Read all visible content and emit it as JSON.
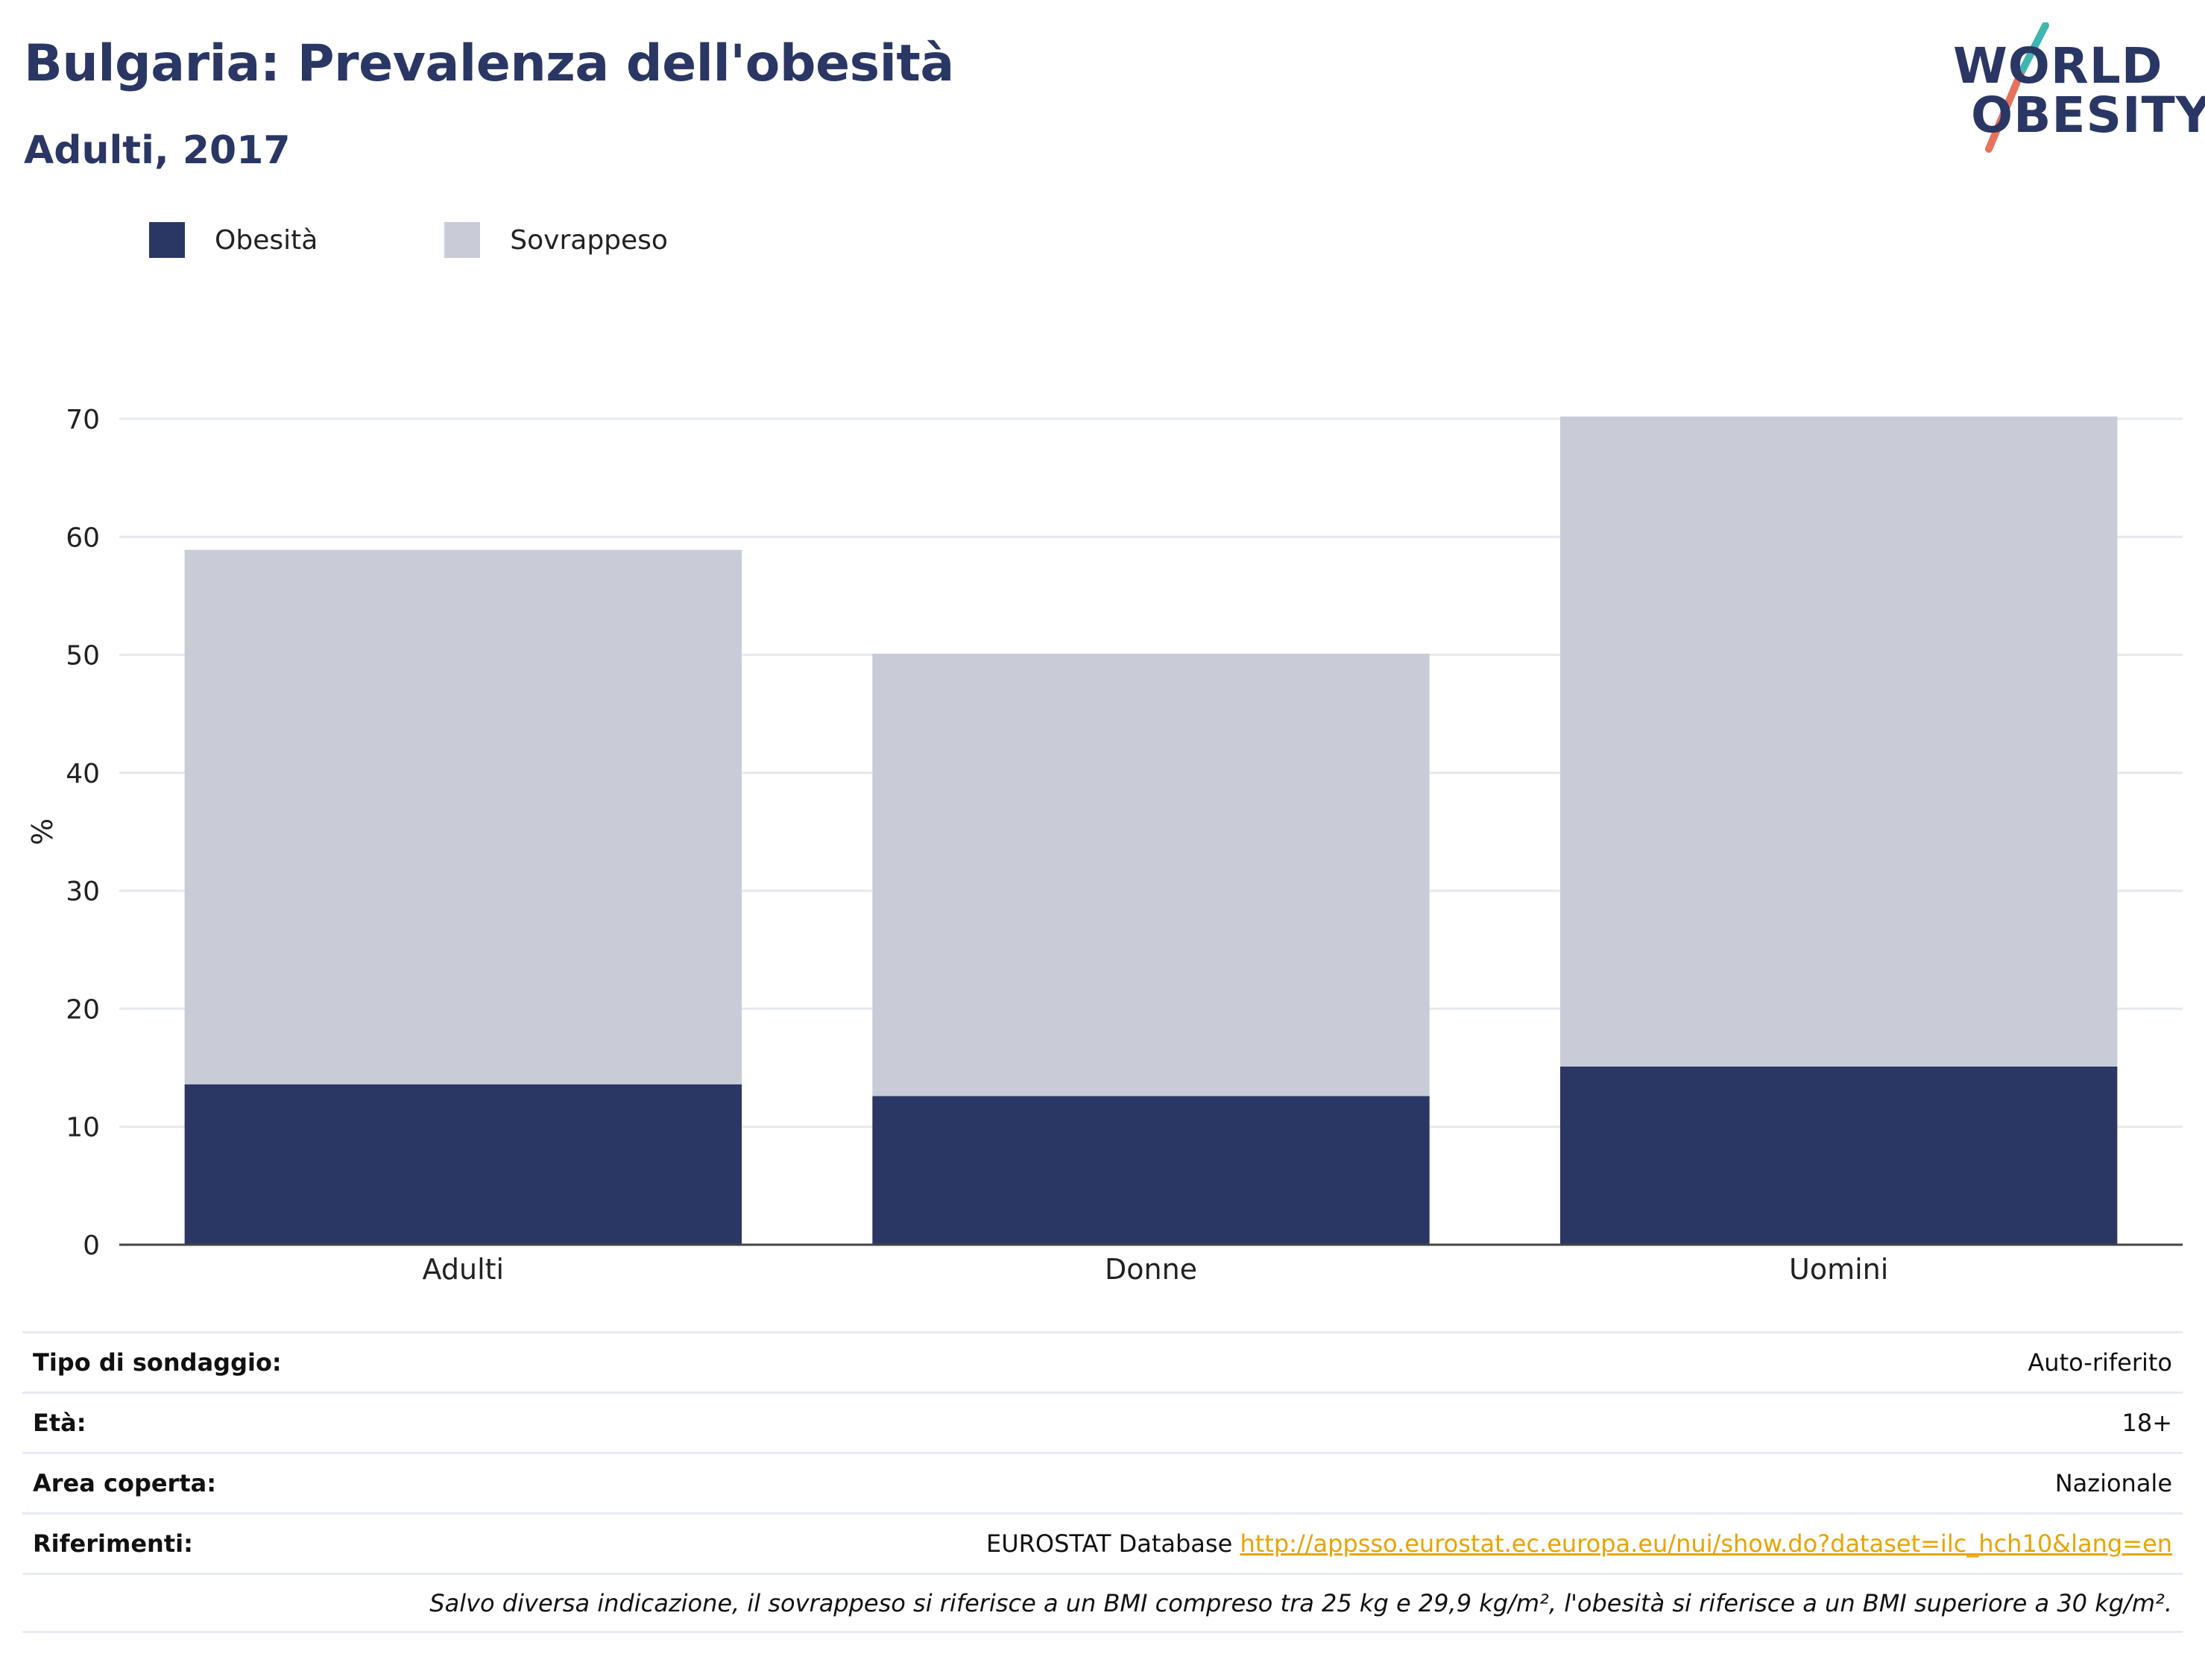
{
  "title": "Bulgaria: Prevalenza dell'obesità",
  "subtitle": "Adulti, 2017",
  "logo": {
    "line1": "WORLD",
    "line2": "OBESITY",
    "accent_teal": "#3fb5b0",
    "accent_red": "#e8715b"
  },
  "legend": {
    "obesity_label": "Obesità",
    "overweight_label": "Sovrappeso"
  },
  "colors": {
    "obesity": "#2a3764",
    "overweight": "#c9cbd7",
    "axis": "#444444",
    "grid": "#e6e8f0"
  },
  "chart_data": {
    "type": "bar",
    "stacked": true,
    "categories": [
      "Adulti",
      "Donne",
      "Uomini"
    ],
    "series": [
      {
        "name": "Obesità",
        "values": [
          13.6,
          12.6,
          15.1
        ],
        "color": "#2a3764"
      },
      {
        "name": "Sovrappeso",
        "values": [
          45.3,
          37.5,
          55.1
        ],
        "color": "#c9cbd7"
      }
    ],
    "ylabel": "%",
    "xlabel": "",
    "ylim": [
      0,
      70
    ],
    "yticks": [
      0,
      10,
      20,
      30,
      40,
      50,
      60,
      70
    ],
    "grid": true,
    "legend_position": "top-left"
  },
  "meta": {
    "survey_type_label": "Tipo di sondaggio:",
    "survey_type_value": "Auto-riferito",
    "age_label": "Età:",
    "age_value": "18+",
    "area_label": "Area coperta:",
    "area_value": "Nazionale",
    "refs_label": "Riferimenti:",
    "refs_source": "EUROSTAT Database",
    "refs_link": "http://appsso.eurostat.ec.europa.eu/nui/show.do?dataset=ilc_hch10&lang=en",
    "note": "Salvo diversa indicazione, il sovrappeso si riferisce a un BMI compreso tra 25 kg e 29,9 kg/m², l'obesità si riferisce a un BMI superiore a 30 kg/m²."
  }
}
